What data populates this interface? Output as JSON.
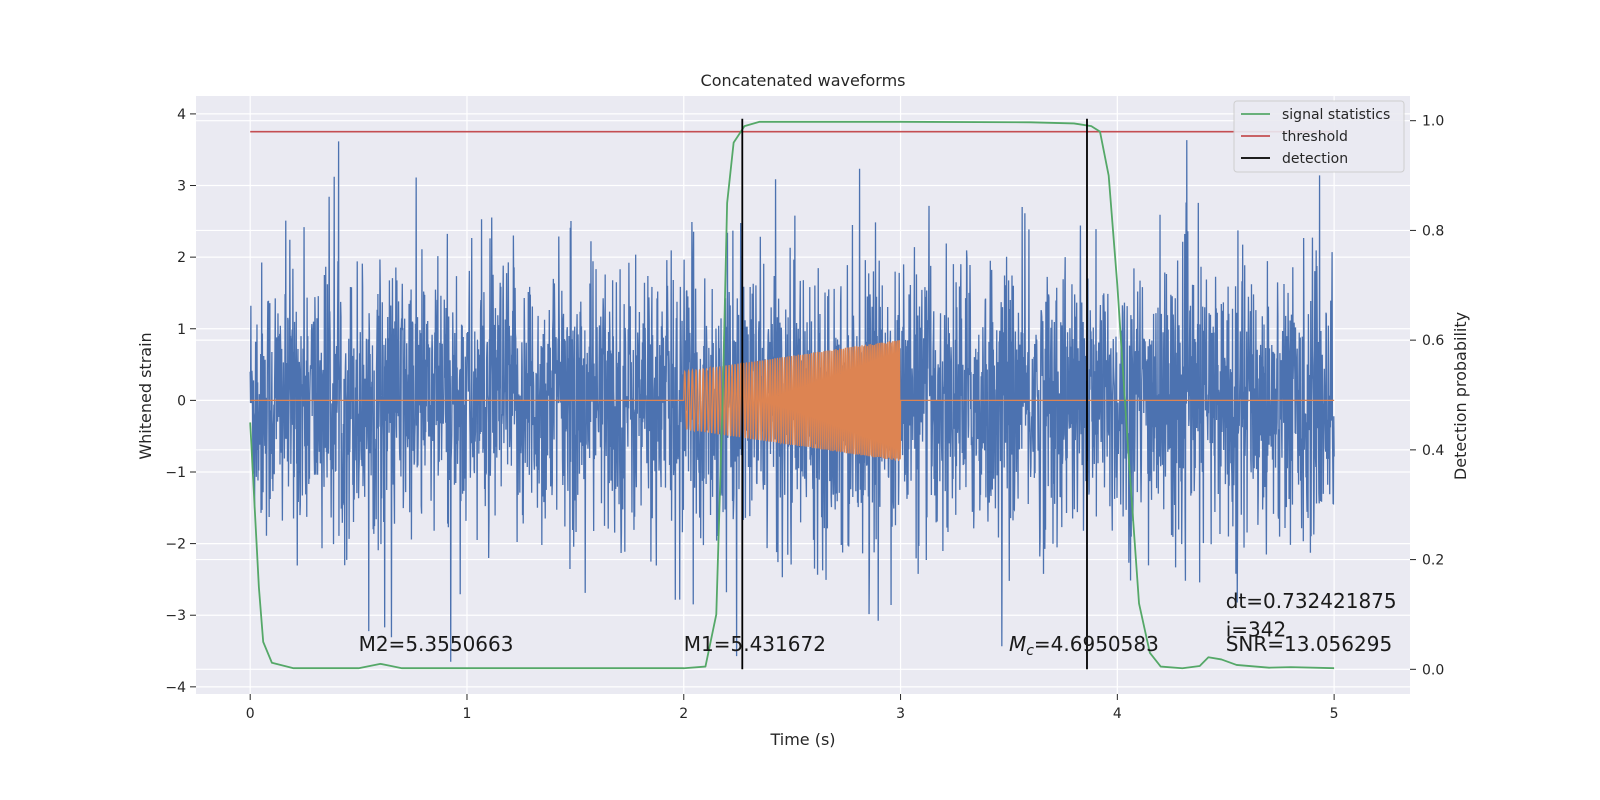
{
  "chart_data": {
    "type": "line",
    "title": "Concatenated waveforms",
    "xlabel": "Time (s)",
    "ylabel_left": "Whitened strain",
    "ylabel_right": "Detection probability",
    "xlim": [
      -0.25,
      5.35
    ],
    "ylim_left": [
      -4.1,
      4.25
    ],
    "ylim_right": [
      -0.045,
      1.045
    ],
    "x_ticks": [
      0,
      1,
      2,
      3,
      4,
      5
    ],
    "x_tick_labels": [
      "0",
      "1",
      "2",
      "3",
      "4",
      "5"
    ],
    "y_left_ticks": [
      -4,
      -3,
      -2,
      -1,
      0,
      1,
      2,
      3,
      4
    ],
    "y_left_tick_labels": [
      "−4",
      "−3",
      "−2",
      "−1",
      "0",
      "1",
      "2",
      "3",
      "4"
    ],
    "y_right_ticks": [
      0.0,
      0.2,
      0.4,
      0.6,
      0.8,
      1.0
    ],
    "y_right_tick_labels": [
      "0.0",
      "0.2",
      "0.4",
      "0.6",
      "0.8",
      "1.0"
    ],
    "grid": true,
    "legend_placement": "upper-right",
    "legend": [
      {
        "label": "signal statistics",
        "color": "#55a868"
      },
      {
        "label": "threshold",
        "color": "#c44e52"
      },
      {
        "label": "detection",
        "color": "#000000"
      }
    ],
    "series": [
      {
        "name": "",
        "kind": "noise",
        "axis": "left",
        "color": "#4c72b0",
        "x_range": [
          0,
          5
        ],
        "y_range": [
          -3.65,
          3.85
        ]
      },
      {
        "name": "",
        "kind": "chirp",
        "axis": "left",
        "color": "#dd8452",
        "x_range": [
          2.0,
          3.0
        ],
        "amplitude_start": 0.4,
        "amplitude_end": 0.85
      },
      {
        "name": "signal statistics",
        "axis": "right",
        "color": "#55a868",
        "points": [
          [
            0,
            0.45
          ],
          [
            0.02,
            0.3
          ],
          [
            0.04,
            0.15
          ],
          [
            0.06,
            0.05
          ],
          [
            0.1,
            0.012
          ],
          [
            0.2,
            0.002
          ],
          [
            0.5,
            0.002
          ],
          [
            0.6,
            0.01
          ],
          [
            0.65,
            0.006
          ],
          [
            0.7,
            0.002
          ],
          [
            1.0,
            0.002
          ],
          [
            1.5,
            0.002
          ],
          [
            2.0,
            0.002
          ],
          [
            2.1,
            0.005
          ],
          [
            2.15,
            0.1
          ],
          [
            2.18,
            0.5
          ],
          [
            2.2,
            0.85
          ],
          [
            2.23,
            0.96
          ],
          [
            2.28,
            0.99
          ],
          [
            2.35,
            0.998
          ],
          [
            3.0,
            0.998
          ],
          [
            3.6,
            0.997
          ],
          [
            3.8,
            0.995
          ],
          [
            3.88,
            0.99
          ],
          [
            3.92,
            0.98
          ],
          [
            3.96,
            0.9
          ],
          [
            4.0,
            0.7
          ],
          [
            4.05,
            0.4
          ],
          [
            4.1,
            0.12
          ],
          [
            4.15,
            0.03
          ],
          [
            4.2,
            0.005
          ],
          [
            4.3,
            0.002
          ],
          [
            4.38,
            0.006
          ],
          [
            4.42,
            0.022
          ],
          [
            4.48,
            0.018
          ],
          [
            4.55,
            0.008
          ],
          [
            4.7,
            0.003
          ],
          [
            4.8,
            0.004
          ],
          [
            5.0,
            0.002
          ]
        ]
      },
      {
        "name": "threshold",
        "axis": "right",
        "color": "#c44e52",
        "points": [
          [
            0,
            0.98
          ],
          [
            5,
            0.98
          ]
        ]
      },
      {
        "name": "detection",
        "axis": "right",
        "color": "#000000",
        "vlines": [
          2.27,
          3.86
        ],
        "y_span": [
          0.0,
          1.0
        ]
      }
    ],
    "annotations": [
      {
        "text": "M2=5.3550663",
        "x": 0.5,
        "y": -3.5
      },
      {
        "text": "M1=5.431672",
        "x": 2.0,
        "y": -3.5
      },
      {
        "math_symbol": "M",
        "math_subscript": "c",
        "text": "=4.6950583",
        "x": 3.5,
        "y": -3.5
      },
      {
        "text": "dt=0.732421875",
        "x": 4.5,
        "y": -2.9
      },
      {
        "text": "i=342",
        "x": 4.5,
        "y": -3.3
      },
      {
        "text": "SNR=13.056295",
        "x": 4.5,
        "y": -3.5
      }
    ]
  }
}
